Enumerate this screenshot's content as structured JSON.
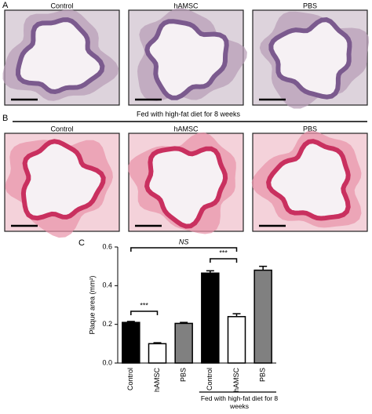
{
  "panel_a": {
    "label": "A",
    "captions": [
      "Control",
      "hAMSC",
      "PBS"
    ]
  },
  "panel_b": {
    "label": "B",
    "header": "Fed with high-fat diet for 8 weeks",
    "captions": [
      "Control",
      "hAMSC",
      "PBS"
    ]
  },
  "chart_data": {
    "type": "bar",
    "panel_label": "C",
    "ylabel": "Plaque area (mm²)",
    "categories": [
      "Control",
      "hAMSC",
      "PBS",
      "Control",
      "hAMSC",
      "PBS"
    ],
    "values": [
      0.21,
      0.1,
      0.205,
      0.465,
      0.24,
      0.48
    ],
    "errors": [
      0.005,
      0.005,
      0.005,
      0.012,
      0.015,
      0.02
    ],
    "colors": [
      "#000000",
      "#ffffff",
      "#808080",
      "#000000",
      "#ffffff",
      "#808080"
    ],
    "ylim": [
      0,
      0.6
    ],
    "yticks": [
      {
        "value": 0,
        "label": "0.0"
      },
      0.2,
      0.4,
      0.6
    ],
    "annotations": [
      {
        "text": "NS"
      },
      {
        "text": "***"
      },
      {
        "text": "***"
      }
    ],
    "group_label": "Fed with high-fat diet for 8 weeks"
  }
}
